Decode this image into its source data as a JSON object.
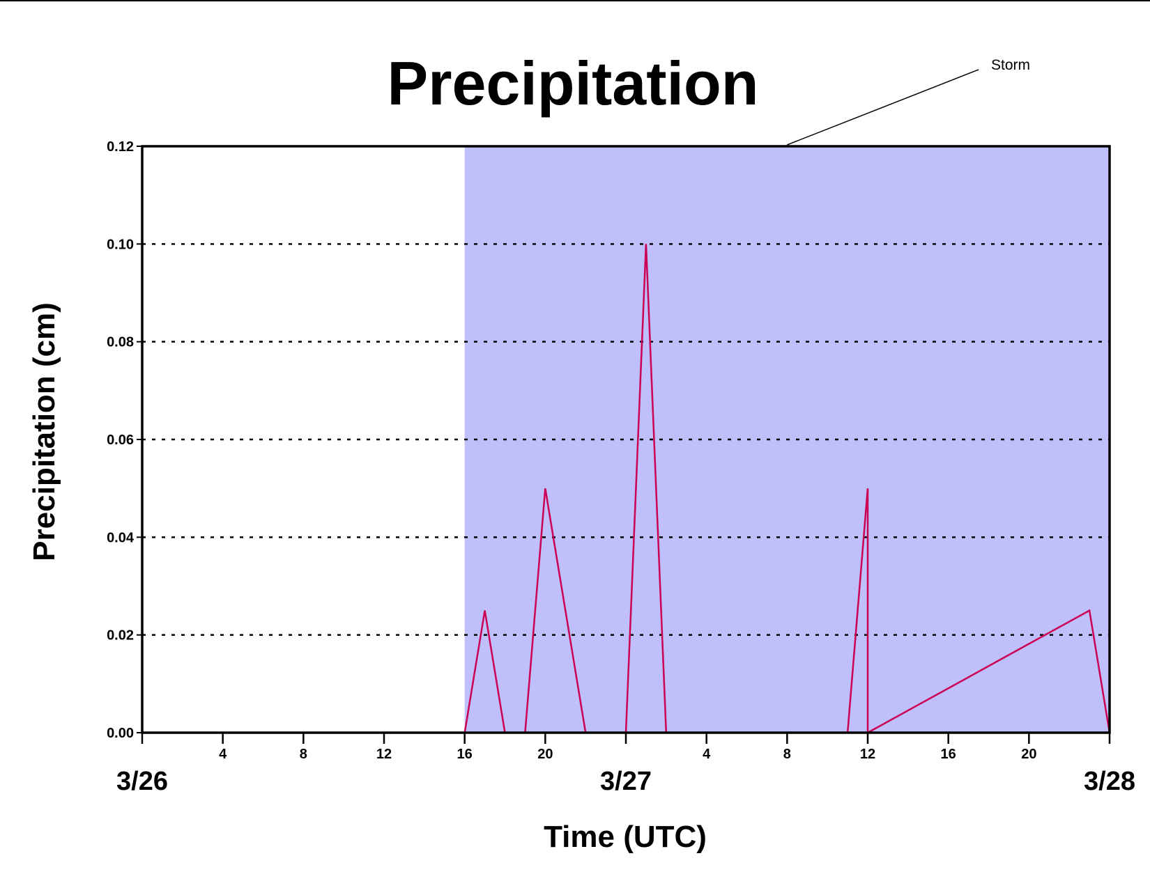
{
  "chart_data": {
    "type": "line",
    "title": "Precipitation",
    "xlabel": "Time (UTC)",
    "ylabel": "Precipitation (cm)",
    "xlim": [
      "3/26 00:00",
      "3/28 00:00"
    ],
    "ylim": [
      0,
      0.12
    ],
    "x_unit": "hour from 3/26 00:00 UTC",
    "yticks": [
      "0.00",
      "0.02",
      "0.04",
      "0.06",
      "0.08",
      "0.10",
      "0.12"
    ],
    "hour_ticks": [
      {
        "hour": 0,
        "label": ""
      },
      {
        "hour": 4,
        "label": "4"
      },
      {
        "hour": 8,
        "label": "8"
      },
      {
        "hour": 12,
        "label": "12"
      },
      {
        "hour": 16,
        "label": "16"
      },
      {
        "hour": 20,
        "label": "20"
      },
      {
        "hour": 24,
        "label": ""
      },
      {
        "hour": 28,
        "label": "4"
      },
      {
        "hour": 32,
        "label": "8"
      },
      {
        "hour": 36,
        "label": "12"
      },
      {
        "hour": 40,
        "label": "16"
      },
      {
        "hour": 44,
        "label": "20"
      },
      {
        "hour": 48,
        "label": ""
      }
    ],
    "date_labels": [
      {
        "hour": 0,
        "label": "3/26"
      },
      {
        "hour": 24,
        "label": "3/27"
      },
      {
        "hour": 48,
        "label": "3/28"
      }
    ],
    "grid": "horizontal dotted",
    "shaded_region": {
      "x_start": 16,
      "x_end": 48,
      "label": "Storm",
      "color": "#bfbffb"
    },
    "line_color": "#cc0052",
    "series": [
      {
        "x": [
          0,
          16,
          17,
          18,
          19,
          20,
          22,
          24,
          25,
          26,
          35,
          36,
          36,
          47,
          48
        ],
        "y": [
          0,
          0,
          0.025,
          0,
          0,
          0.05,
          0,
          0,
          0.1,
          0,
          0,
          0.05,
          0,
          0.025,
          0
        ]
      }
    ]
  }
}
